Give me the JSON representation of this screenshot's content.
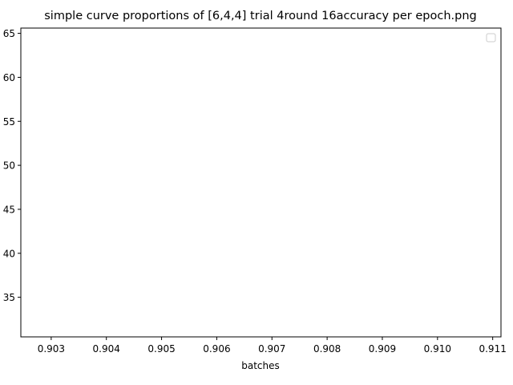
{
  "chart_data": {
    "type": "line",
    "title": "simple curve proportions of [6,4,4] trial 4round 16accuracy per epoch.png",
    "xlabel": "batches",
    "ylabel": "",
    "xlim": [
      0.90245,
      0.91115
    ],
    "ylim": [
      30.5,
      65.6
    ],
    "x_ticks": [
      "0.903",
      "0.904",
      "0.905",
      "0.906",
      "0.907",
      "0.908",
      "0.909",
      "0.910",
      "0.911"
    ],
    "y_ticks": [
      "35",
      "40",
      "45",
      "50",
      "55",
      "60",
      "65"
    ],
    "y_ticks_partially_cropped": true,
    "series": [],
    "legend": {
      "placement": "top-right",
      "entries": []
    },
    "grid": false
  }
}
